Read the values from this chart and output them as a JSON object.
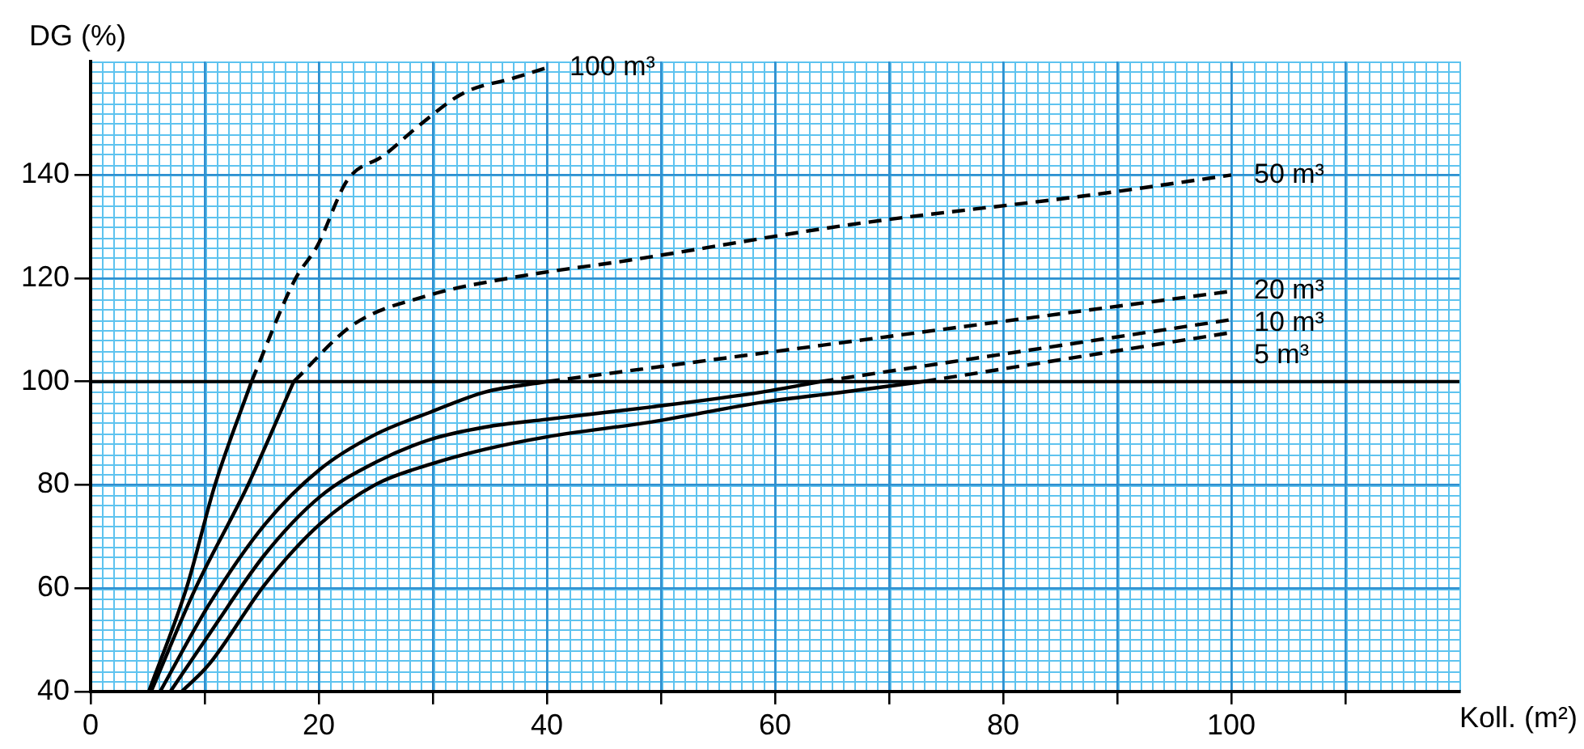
{
  "chart_data": {
    "type": "line",
    "xlabel": "Koll. (m²)",
    "ylabel": "DG (%)",
    "xlim": [
      0,
      120
    ],
    "ylim": [
      40,
      162
    ],
    "xticks": [
      0,
      {
        "value": 10,
        "label": null
      },
      20,
      {
        "value": 30,
        "label": null
      },
      40,
      {
        "value": 50,
        "label": null
      },
      60,
      {
        "value": 70,
        "label": null
      },
      80,
      {
        "value": 90,
        "label": null
      },
      100,
      {
        "value": 110,
        "label": null
      }
    ],
    "yticks": [
      40,
      60,
      80,
      100,
      120,
      140
    ],
    "grid": true,
    "legend": false,
    "marker": "none",
    "ref_lines": [
      {
        "axis": "y",
        "value": 100,
        "color": "#000000"
      }
    ],
    "series": [
      {
        "color": "#000000",
        "line_style": "solid",
        "x": [
          5.1,
          8.4,
          10.9,
          14.1
        ],
        "values": [
          40,
          60,
          80,
          100
        ]
      },
      {
        "name": "100 m³",
        "color": "#000000",
        "line_style": "dashed",
        "x": [
          14.1,
          17.9,
          19.9,
          22.5,
          25.7,
          28.8,
          32.7,
          37.1,
          40
        ],
        "values": [
          100,
          119.7,
          126.4,
          139,
          143.8,
          149.6,
          155.9,
          158.8,
          160.8
        ]
      },
      {
        "color": "#000000",
        "line_style": "solid",
        "x": [
          5.3,
          9.2,
          13.8,
          17.8
        ],
        "values": [
          40,
          60,
          80,
          100
        ]
      },
      {
        "name": "50 m³",
        "color": "#000000",
        "line_style": "dashed",
        "x": [
          17.8,
          23,
          29.8,
          37.1,
          47.2,
          66.6,
          87.9,
          100
        ],
        "values": [
          100,
          111,
          116.8,
          120.2,
          123.5,
          130.4,
          136.2,
          140
        ]
      },
      {
        "color": "#000000",
        "line_style": "solid",
        "x": [
          6.1,
          10.4,
          15.3,
          20.1,
          25,
          29.8,
          34.6,
          40
        ],
        "values": [
          40,
          56.9,
          72.4,
          83,
          89.8,
          94.1,
          98,
          100
        ]
      },
      {
        "name": "20 m³",
        "color": "#000000",
        "line_style": "dashed",
        "x": [
          40,
          100
        ],
        "values": [
          100,
          117.5
        ]
      },
      {
        "color": "#000000",
        "line_style": "solid",
        "x": [
          7,
          10.4,
          15.3,
          20.1,
          25,
          29.8,
          34.6,
          40,
          49.2,
          58.9,
          64
        ],
        "values": [
          40,
          51.1,
          66.6,
          77.7,
          84.4,
          88.8,
          91.2,
          92.7,
          95.1,
          98,
          100
        ]
      },
      {
        "name": "10 m³",
        "color": "#000000",
        "line_style": "dashed",
        "x": [
          64,
          100
        ],
        "values": [
          100,
          112
        ]
      },
      {
        "color": "#000000",
        "line_style": "solid",
        "x": [
          8,
          10.4,
          15.3,
          20.1,
          25,
          29.8,
          34.6,
          40,
          49.2,
          58.9,
          66.1,
          73
        ],
        "values": [
          40,
          45.3,
          60.8,
          72.4,
          80.1,
          84,
          86.9,
          89.3,
          92.2,
          96,
          98,
          100
        ]
      },
      {
        "name": "5 m³",
        "color": "#000000",
        "line_style": "dashed",
        "x": [
          73,
          100
        ],
        "values": [
          100,
          109.5
        ]
      }
    ]
  }
}
